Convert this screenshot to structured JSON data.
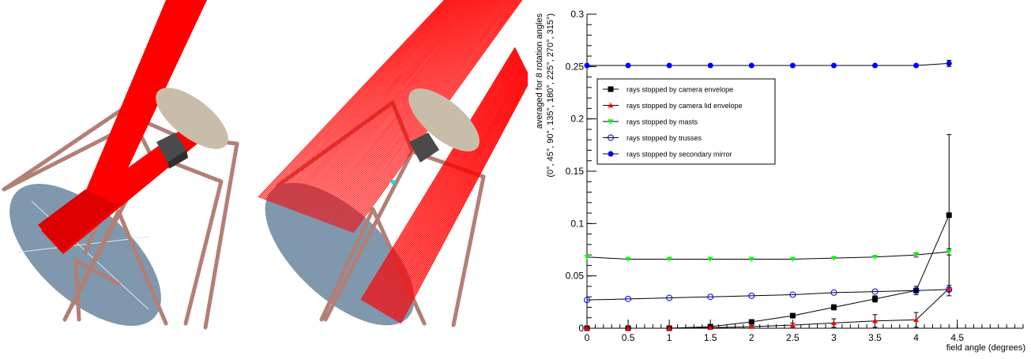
{
  "renders": {
    "left_label": "",
    "right_label": "",
    "colors": {
      "mirror": "#7f98ad",
      "secondary": "#c9bdaa",
      "camera": "#4a4a4a",
      "truss": "#b27f77",
      "rays": "#ff0000",
      "marker": "#00e5e5"
    }
  },
  "chart_data": {
    "type": "scatter",
    "title": "",
    "xlabel": "field angle (degrees)",
    "ylabel": "averaged for 8 rotation angles",
    "ylabel2": "(0°, 45°, 90°, 135°, 180°, 225°, 270°, 315°)",
    "xlim": [
      0,
      5.3
    ],
    "ylim": [
      0,
      0.3
    ],
    "xticks": [
      0,
      0.5,
      1,
      1.5,
      2,
      2.5,
      3,
      3.5,
      4,
      4.5
    ],
    "yticks": [
      0,
      0.05,
      0.1,
      0.15,
      0.2,
      0.25,
      0.3
    ],
    "xtick_labels": [
      "0",
      "0.5",
      "1",
      "1.5",
      "2",
      "2.5",
      "3",
      "3.5",
      "4",
      "4.5"
    ],
    "ytick_labels": [
      "0",
      "0.05",
      "0.1",
      "0.15",
      "0.2",
      "0.25",
      "0.3"
    ],
    "x": [
      0,
      0.5,
      1,
      1.5,
      2,
      2.5,
      3,
      3.5,
      4,
      4.4
    ],
    "legend_position": "top-left",
    "grid": false,
    "series": [
      {
        "name": "rays stopped by camera envelope",
        "marker": "square",
        "color": "#000000",
        "values": [
          0,
          0,
          0,
          0.0015,
          0.006,
          0.012,
          0.02,
          0.028,
          0.036,
          0.108
        ],
        "errors": [
          0,
          0,
          0,
          0.001,
          0.0015,
          0.002,
          0.0025,
          0.003,
          0.004,
          0.077
        ]
      },
      {
        "name": "rays stopped by camera lid envelope",
        "marker": "triangle",
        "color": "#ff0000",
        "values": [
          0,
          0,
          0,
          0.0005,
          0.0015,
          0.003,
          0.005,
          0.007,
          0.008,
          0.038
        ],
        "errors": [
          0,
          0,
          0,
          0.0005,
          0.001,
          0.002,
          0.004,
          0.006,
          0.007,
          0.003
        ]
      },
      {
        "name": "rays stopped by masts",
        "marker": "triangle-down",
        "color": "#00ff00",
        "values": [
          0.068,
          0.066,
          0.066,
          0.066,
          0.066,
          0.066,
          0.067,
          0.068,
          0.07,
          0.073
        ],
        "errors": [
          0,
          0,
          0,
          0,
          0,
          0,
          0,
          0,
          0.002,
          0.003
        ]
      },
      {
        "name": "rays stopped by trusses",
        "marker": "circle-open",
        "color": "#0000ff",
        "values": [
          0.027,
          0.028,
          0.029,
          0.03,
          0.031,
          0.032,
          0.034,
          0.035,
          0.036,
          0.037
        ],
        "errors": [
          0,
          0,
          0,
          0,
          0,
          0,
          0,
          0,
          0.001,
          0.002
        ]
      },
      {
        "name": "rays stopped by secondary mirror",
        "marker": "circle",
        "color": "#0000ff",
        "values": [
          0.251,
          0.251,
          0.251,
          0.251,
          0.251,
          0.251,
          0.251,
          0.251,
          0.251,
          0.253
        ],
        "errors": [
          0,
          0,
          0,
          0,
          0,
          0,
          0,
          0,
          0,
          0.003
        ]
      }
    ]
  }
}
